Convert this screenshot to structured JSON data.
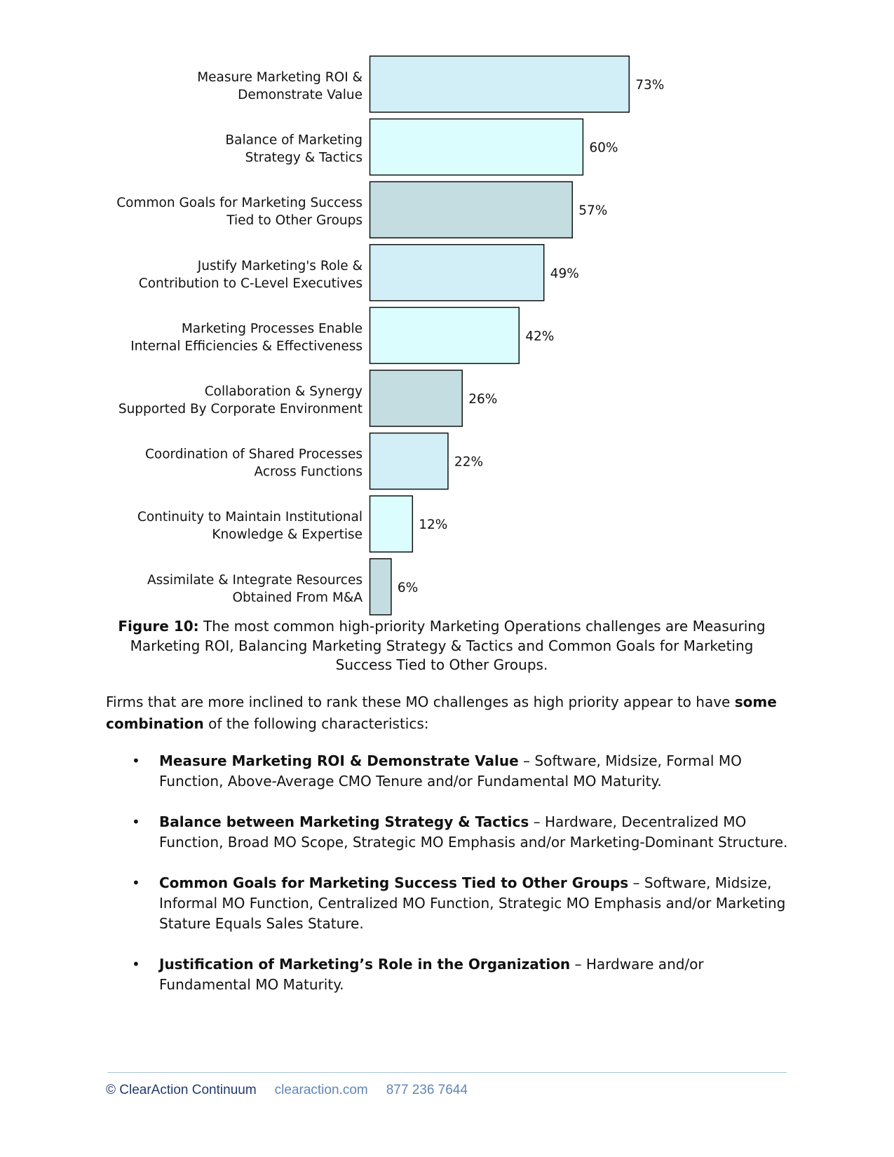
{
  "chart_data": {
    "type": "bar",
    "orientation": "horizontal",
    "categories": [
      [
        "Measure Marketing ROI &",
        "Demonstrate Value"
      ],
      [
        "Balance of Marketing",
        "Strategy & Tactics"
      ],
      [
        "Common Goals for Marketing Success",
        "Tied to Other Groups"
      ],
      [
        "Justify Marketing's Role &",
        "Contribution to C-Level Executives"
      ],
      [
        "Marketing Processes Enable",
        "Internal Efficiencies & Effectiveness"
      ],
      [
        "Collaboration & Synergy",
        "Supported By Corporate Environment"
      ],
      [
        "Coordination of Shared Processes",
        "Across Functions"
      ],
      [
        "Continuity to Maintain Institutional",
        "Knowledge & Expertise"
      ],
      [
        "Assimilate & Integrate Resources",
        "Obtained From M&A"
      ]
    ],
    "values": [
      73,
      60,
      57,
      49,
      42,
      26,
      22,
      12,
      6
    ],
    "value_labels": [
      "73%",
      "60%",
      "57%",
      "49%",
      "42%",
      "26%",
      "22%",
      "12%",
      "6%"
    ],
    "bar_colors": [
      "#d2eff8",
      "#dcfdfd",
      "#c3dde1",
      "#d2eff8",
      "#dcfdfd",
      "#c3dde1",
      "#d2eff8",
      "#dcfdfd",
      "#c3dde1"
    ],
    "xlim": [
      0,
      100
    ],
    "grid": false,
    "legend": "none"
  },
  "caption": {
    "bold": "Figure 10:",
    "text": " The most common high-priority Marketing Operations challenges are Measuring Marketing ROI, Balancing Marketing Strategy & Tactics and Common Goals for Marketing Success Tied to Other Groups."
  },
  "intro": {
    "part1": "Firms that are more inclined to rank these MO challenges as high priority appear to have ",
    "bold": "some combination",
    "part2": " of the following characteristics:"
  },
  "bullets": [
    {
      "bold": "Measure Marketing ROI & Demonstrate Value",
      "text": " – Software, Midsize, Formal MO Function, Above-Average CMO Tenure and/or Fundamental MO Maturity."
    },
    {
      "bold": "Balance between Marketing Strategy & Tactics",
      "text": " – Hardware, Decentralized MO Function, Broad MO Scope, Strategic MO Emphasis and/or Marketing-Dominant Structure."
    },
    {
      "bold": "Common Goals for Marketing Success Tied to Other Groups",
      "text": " – Software, Midsize, Informal MO Function, Centralized MO Function, Strategic MO Emphasis and/or Marketing Stature Equals Sales Stature."
    },
    {
      "bold": "Justification of Marketing’s Role in the Organization",
      "text": " – Hardware and/or Fundamental MO Maturity."
    }
  ],
  "bullet_glyph": "•",
  "footer": {
    "copyright": "© ClearAction Continuum",
    "website": "clearaction.com",
    "phone": "877 236 7644"
  },
  "colors": {
    "bar_border": "#111111",
    "footer_text": "#1f3a6e",
    "footer_link": "#5f86b8",
    "footer_rule": "#a9c4d8"
  }
}
